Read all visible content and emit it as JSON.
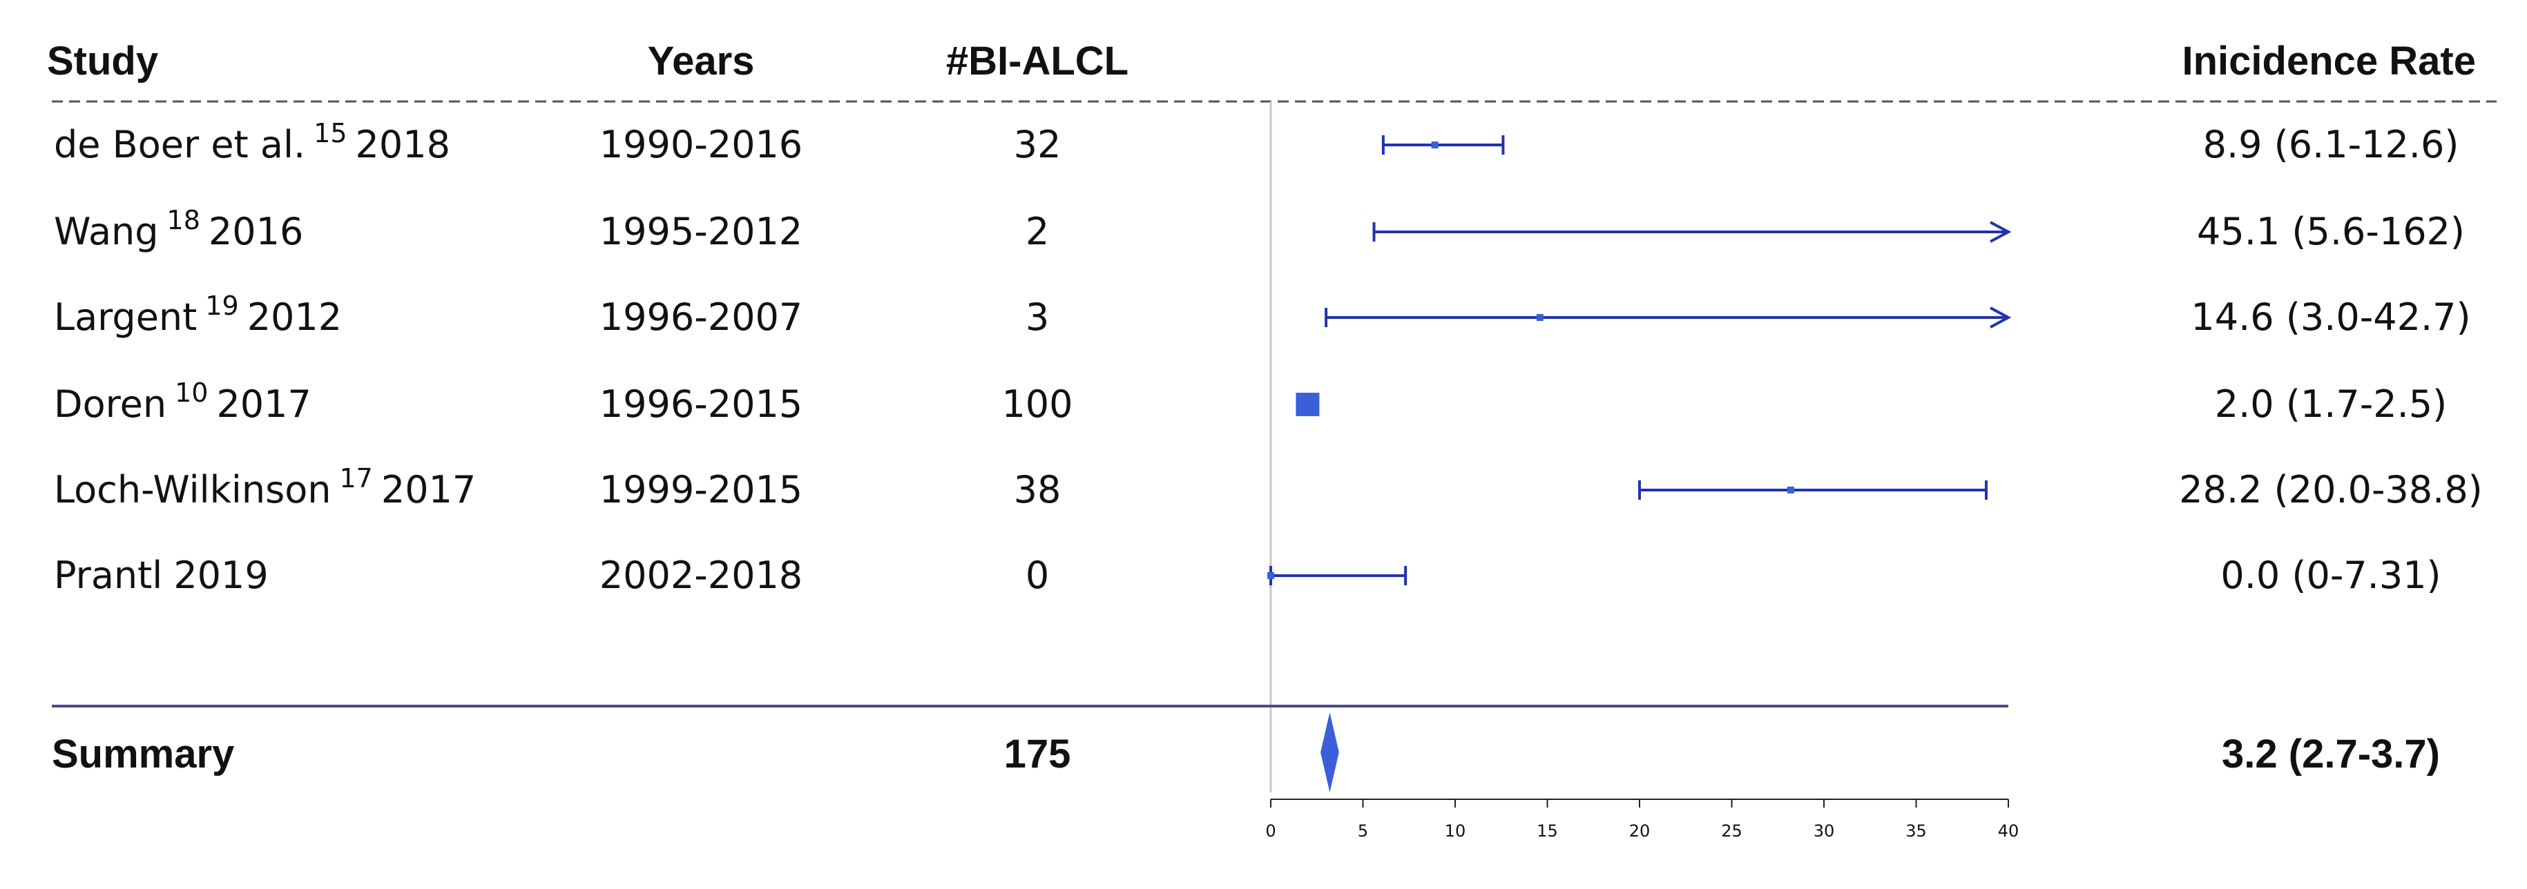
{
  "headers": {
    "study": "Study",
    "years": "Years",
    "n": "#BI-ALCL",
    "rate": "Inicidence Rate"
  },
  "colors": {
    "marker": "#3a5fd8",
    "line": "#2233aa",
    "summary_rule": "#4a4a8a",
    "zero_line": "#c8c8c8"
  },
  "rows": [
    {
      "author": "de Boer et al.",
      "ref": "15",
      "year": "2018",
      "years": "1990-2016",
      "n": "32",
      "rate_text": "8.9 (6.1-12.6)"
    },
    {
      "author": "Wang",
      "ref": "18",
      "year": "2016",
      "years": "1995-2012",
      "n": "2",
      "rate_text": "45.1 (5.6-162)"
    },
    {
      "author": "Largent",
      "ref": "19",
      "year": "2012",
      "years": "1996-2007",
      "n": "3",
      "rate_text": "14.6 (3.0-42.7)"
    },
    {
      "author": "Doren",
      "ref": "10",
      "year": "2017",
      "years": "1996-2015",
      "n": "100",
      "rate_text": "2.0 (1.7-2.5)"
    },
    {
      "author": "Loch-Wilkinson",
      "ref": "17",
      "year": "2017",
      "years": "1999-2015",
      "n": "38",
      "rate_text": "28.2 (20.0-38.8)"
    },
    {
      "author": "Prantl",
      "ref": "",
      "year": "2019",
      "years": "2002-2018",
      "n": "0",
      "rate_text": "0.0 (0-7.31)"
    }
  ],
  "summary": {
    "label": "Summary",
    "n": "175",
    "rate_text": "3.2 (2.7-3.7)"
  },
  "chart_data": {
    "type": "forest",
    "xlim": [
      0,
      40
    ],
    "ticks": [
      "0",
      "5",
      "10",
      "15",
      "20",
      "25",
      "30",
      "35",
      "40"
    ],
    "studies": [
      {
        "est": 8.9,
        "lo": 6.1,
        "hi": 12.6,
        "arrow": false,
        "big_marker": false
      },
      {
        "est": 45.1,
        "lo": 5.6,
        "hi": 162,
        "arrow": true,
        "big_marker": false
      },
      {
        "est": 14.6,
        "lo": 3.0,
        "hi": 42.7,
        "arrow": true,
        "big_marker": false
      },
      {
        "est": 2.0,
        "lo": 1.7,
        "hi": 2.5,
        "arrow": false,
        "big_marker": true
      },
      {
        "est": 28.2,
        "lo": 20.0,
        "hi": 38.8,
        "arrow": false,
        "big_marker": false
      },
      {
        "est": 0.0,
        "lo": 0,
        "hi": 7.31,
        "arrow": false,
        "big_marker": false
      }
    ],
    "summary": {
      "est": 3.2,
      "lo": 2.7,
      "hi": 3.7
    }
  }
}
